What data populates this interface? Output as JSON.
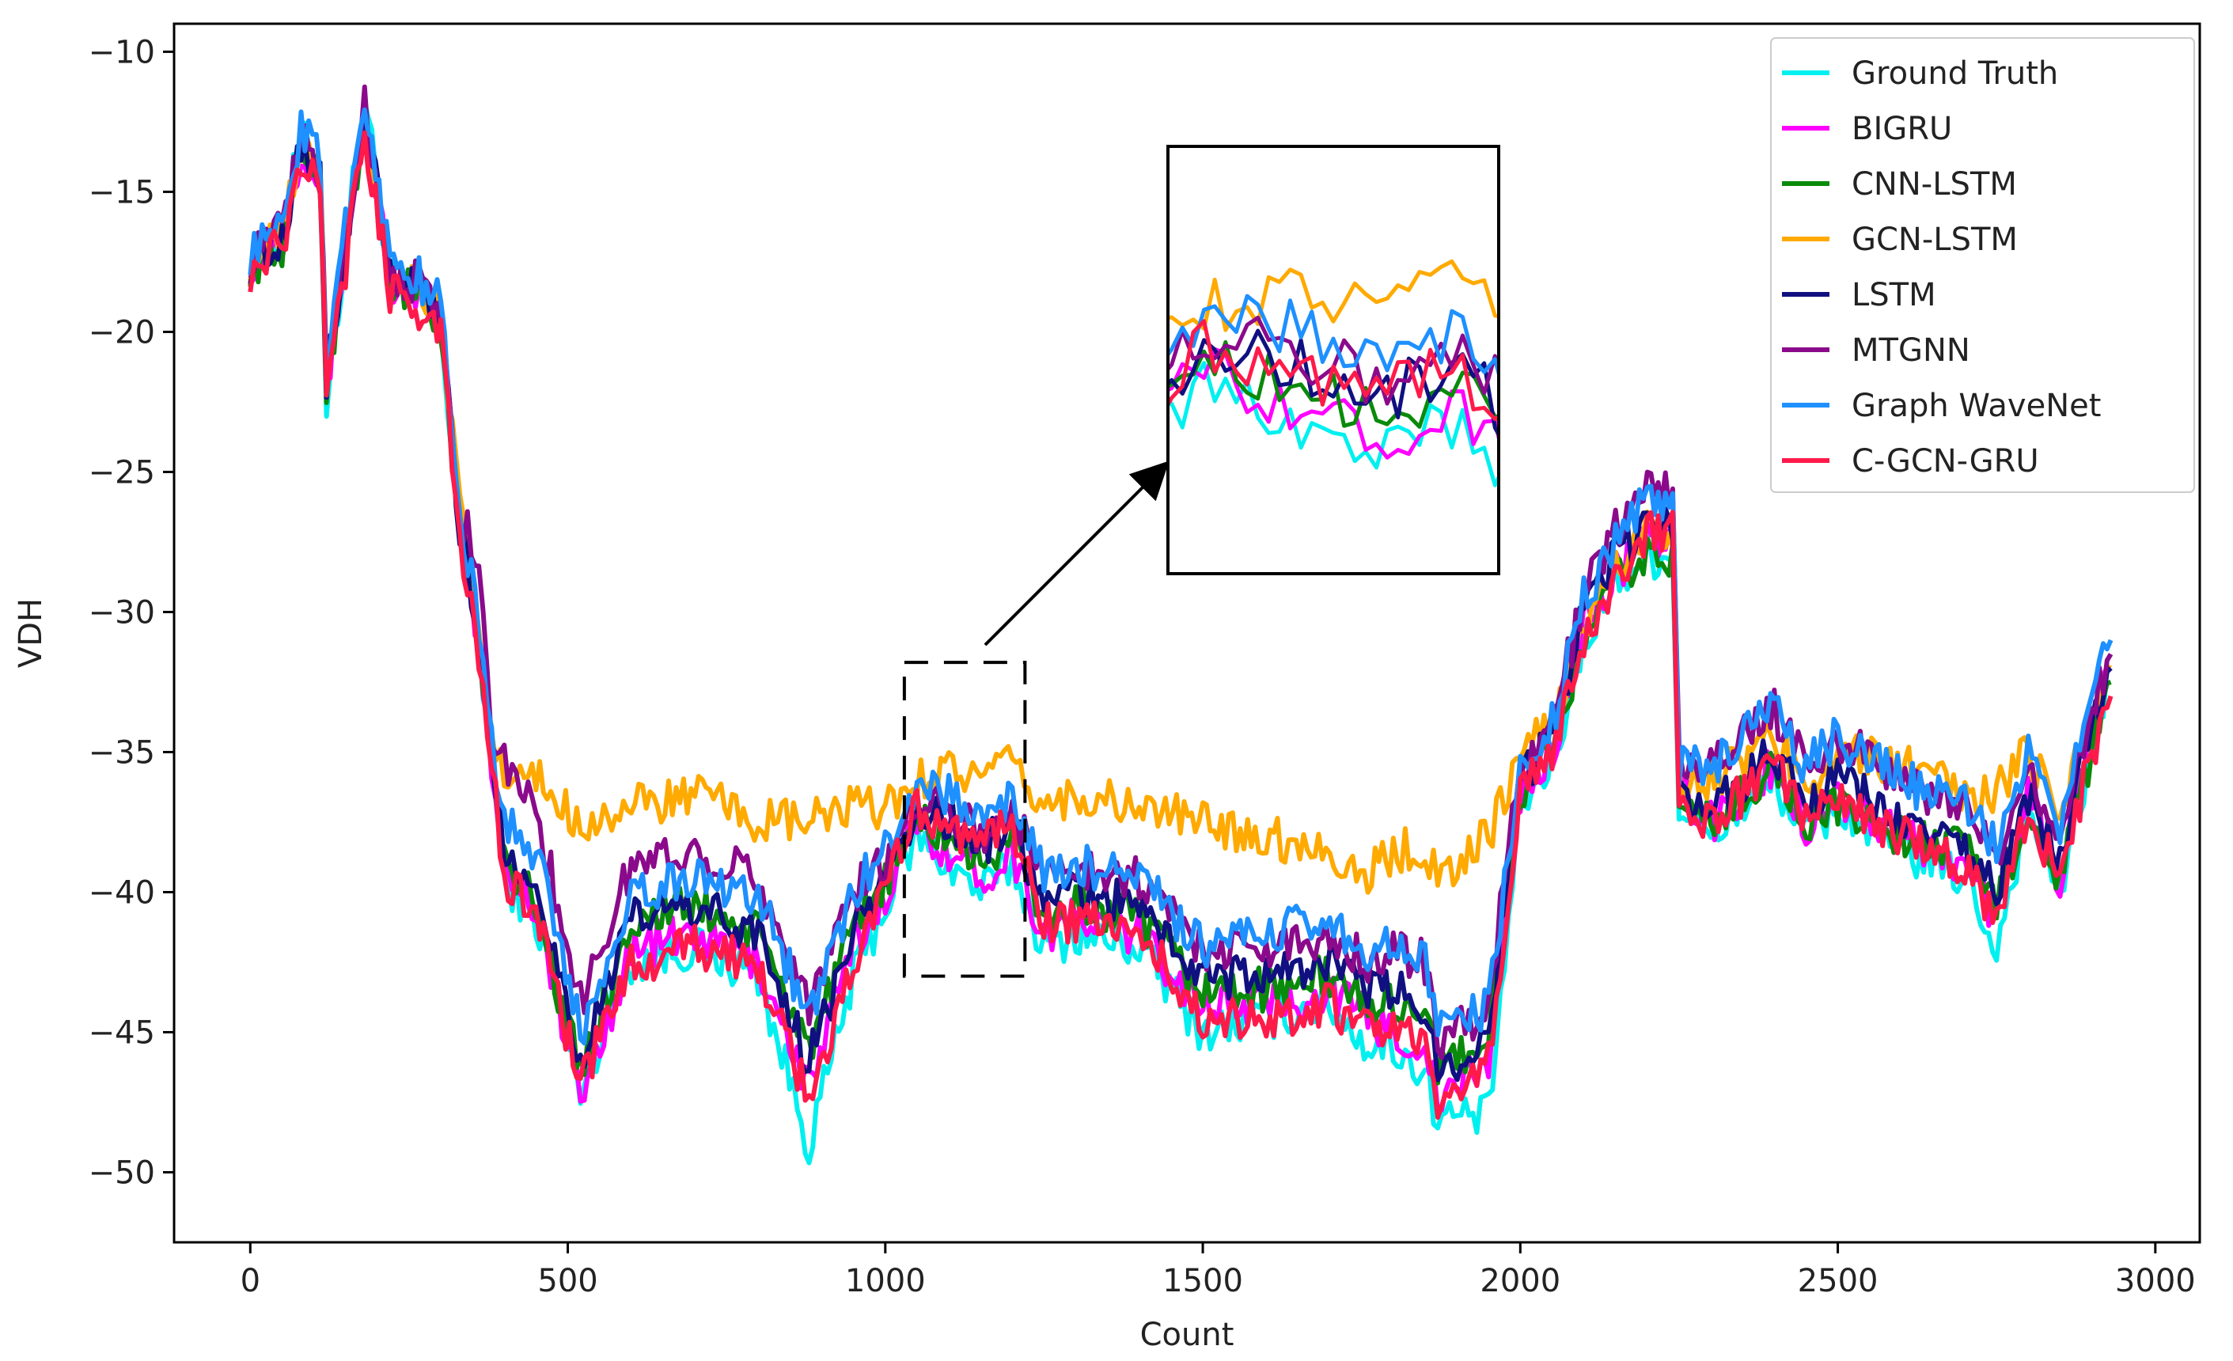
{
  "chart_data": {
    "type": "line",
    "xlabel": "Count",
    "ylabel": "VDH",
    "xlim": [
      -120,
      3070
    ],
    "ylim": [
      -52.5,
      -9
    ],
    "xticks": [
      0,
      500,
      1000,
      1500,
      2000,
      2500,
      3000
    ],
    "yticks": [
      -10,
      -15,
      -20,
      -25,
      -30,
      -35,
      -40,
      -45,
      -50
    ],
    "xtick_labels": [
      "0",
      "500",
      "1000",
      "1500",
      "2000",
      "2500",
      "3000"
    ],
    "ytick_labels": [
      "−10",
      "−15",
      "−20",
      "−25",
      "−30",
      "−35",
      "−40",
      "−45",
      "−50"
    ],
    "legend_position": "top-right",
    "x": [
      0,
      50,
      80,
      110,
      120,
      180,
      220,
      260,
      300,
      330,
      360,
      380,
      400,
      450,
      520,
      600,
      700,
      800,
      880,
      950,
      1000,
      1050,
      1100,
      1150,
      1200,
      1250,
      1300,
      1400,
      1500,
      1600,
      1700,
      1760,
      1800,
      1850,
      1870,
      1950,
      2000,
      2050,
      2100,
      2150,
      2200,
      2240,
      2250,
      2300,
      2400,
      2450,
      2500,
      2600,
      2700,
      2750,
      2800,
      2850,
      2900,
      2930
    ],
    "series": [
      {
        "name": "Ground Truth",
        "color": "#00f0f0",
        "values": [
          -17.5,
          -16.5,
          -13.0,
          -14.5,
          -22.5,
          -11.5,
          -18.0,
          -18.5,
          -20.0,
          -27.0,
          -31.0,
          -35.5,
          -39.5,
          -41.0,
          -47.0,
          -42.5,
          -42.0,
          -43.0,
          -49.0,
          -43.0,
          -40.5,
          -38.0,
          -39.0,
          -40.0,
          -39.0,
          -42.0,
          -41.5,
          -42.0,
          -45.0,
          -44.5,
          -44.0,
          -45.5,
          -45.5,
          -46.5,
          -48.0,
          -48.0,
          -37.0,
          -35.5,
          -31.0,
          -29.0,
          -28.0,
          -28.0,
          -37.0,
          -38.0,
          -36.0,
          -38.0,
          -37.0,
          -38.5,
          -39.5,
          -42.0,
          -37.0,
          -40.0,
          -35.0,
          -32.0
        ]
      },
      {
        "name": "BIGRU",
        "color": "#ff00ff",
        "values": [
          -17.5,
          -16.8,
          -13.3,
          -14.6,
          -22.0,
          -12.0,
          -18.2,
          -18.6,
          -19.8,
          -27.0,
          -31.0,
          -35.5,
          -39.0,
          -40.5,
          -47.5,
          -42.0,
          -41.5,
          -42.5,
          -47.0,
          -42.0,
          -40.0,
          -37.5,
          -38.5,
          -39.5,
          -38.5,
          -41.5,
          -41.0,
          -41.5,
          -44.0,
          -44.0,
          -43.5,
          -44.5,
          -45.0,
          -45.5,
          -47.5,
          -46.0,
          -36.5,
          -35.0,
          -30.5,
          -28.5,
          -27.5,
          -27.5,
          -36.5,
          -37.5,
          -35.5,
          -37.5,
          -36.5,
          -38.0,
          -39.0,
          -41.0,
          -36.5,
          -39.5,
          -34.5,
          -32.0
        ]
      },
      {
        "name": "CNN-LSTM",
        "color": "#0a8a0a",
        "values": [
          -17.6,
          -16.9,
          -13.4,
          -14.8,
          -22.0,
          -12.2,
          -18.3,
          -18.6,
          -19.8,
          -27.2,
          -31.2,
          -35.2,
          -38.5,
          -40.5,
          -46.5,
          -41.0,
          -40.5,
          -41.5,
          -45.5,
          -41.5,
          -39.5,
          -37.5,
          -38.0,
          -39.0,
          -38.0,
          -41.0,
          -40.5,
          -41.0,
          -43.5,
          -43.5,
          -43.0,
          -44.0,
          -44.0,
          -44.0,
          -46.5,
          -45.0,
          -36.5,
          -35.0,
          -31.0,
          -29.0,
          -28.0,
          -28.0,
          -37.0,
          -37.5,
          -35.5,
          -37.5,
          -37.0,
          -38.0,
          -38.5,
          -40.5,
          -37.0,
          -39.5,
          -35.0,
          -32.5
        ]
      },
      {
        "name": "GCN-LSTM",
        "color": "#ffaa00",
        "values": [
          -17.4,
          -16.5,
          -13.2,
          -14.5,
          -21.5,
          -12.0,
          -18.0,
          -18.3,
          -19.5,
          -26.5,
          -30.5,
          -34.5,
          -36.0,
          -36.0,
          -37.5,
          -37.0,
          -36.5,
          -37.5,
          -37.5,
          -37.0,
          -37.0,
          -36.0,
          -35.5,
          -36.0,
          -35.5,
          -37.0,
          -36.5,
          -37.0,
          -37.5,
          -38.0,
          -38.5,
          -39.5,
          -38.5,
          -38.5,
          -39.5,
          -38.0,
          -35.0,
          -34.0,
          -30.5,
          -28.5,
          -27.0,
          -27.0,
          -36.0,
          -36.0,
          -34.5,
          -36.0,
          -35.0,
          -35.5,
          -36.5,
          -36.5,
          -35.0,
          -37.0,
          -33.5,
          -32.0
        ]
      },
      {
        "name": "LSTM",
        "color": "#101080",
        "values": [
          -17.5,
          -16.7,
          -13.2,
          -14.6,
          -21.8,
          -12.1,
          -18.1,
          -18.5,
          -19.7,
          -27.0,
          -31.0,
          -35.0,
          -38.5,
          -39.5,
          -46.0,
          -41.0,
          -40.5,
          -41.5,
          -46.0,
          -41.5,
          -39.5,
          -37.0,
          -37.5,
          -38.5,
          -37.5,
          -40.5,
          -40.0,
          -40.5,
          -43.0,
          -43.0,
          -42.5,
          -43.5,
          -43.5,
          -44.0,
          -46.5,
          -45.0,
          -36.0,
          -34.5,
          -30.0,
          -28.0,
          -27.0,
          -27.0,
          -36.5,
          -37.0,
          -35.0,
          -37.0,
          -36.0,
          -37.5,
          -38.5,
          -40.0,
          -36.5,
          -39.0,
          -34.0,
          -32.0
        ]
      },
      {
        "name": "MTGNN",
        "color": "#8b0a8b",
        "values": [
          -17.3,
          -16.4,
          -13.0,
          -14.4,
          -21.5,
          -11.8,
          -17.8,
          -18.2,
          -19.3,
          -26.5,
          -28.0,
          -34.0,
          -35.5,
          -37.0,
          -44.0,
          -39.0,
          -38.5,
          -39.5,
          -44.0,
          -40.0,
          -39.0,
          -36.5,
          -37.0,
          -38.0,
          -37.0,
          -39.5,
          -39.0,
          -39.5,
          -42.0,
          -42.0,
          -41.5,
          -42.5,
          -42.0,
          -42.5,
          -45.5,
          -44.0,
          -35.5,
          -34.0,
          -29.5,
          -27.0,
          -25.5,
          -25.5,
          -35.5,
          -35.5,
          -33.5,
          -35.5,
          -34.5,
          -36.0,
          -37.0,
          -39.0,
          -35.5,
          -38.0,
          -33.5,
          -31.5
        ]
      },
      {
        "name": "Graph WaveNet",
        "color": "#1e90ff",
        "values": [
          -17.2,
          -16.2,
          -12.6,
          -14.0,
          -21.0,
          -11.5,
          -17.5,
          -18.0,
          -19.0,
          -26.5,
          -30.5,
          -34.5,
          -37.5,
          -38.5,
          -45.0,
          -40.0,
          -39.5,
          -40.0,
          -44.5,
          -40.0,
          -38.5,
          -36.0,
          -36.5,
          -37.5,
          -36.5,
          -39.5,
          -39.0,
          -39.5,
          -42.0,
          -41.5,
          -41.0,
          -42.0,
          -42.0,
          -42.5,
          -45.0,
          -44.0,
          -35.5,
          -34.0,
          -29.5,
          -27.5,
          -26.0,
          -26.0,
          -35.5,
          -35.5,
          -33.5,
          -35.5,
          -34.5,
          -36.0,
          -37.0,
          -38.5,
          -35.0,
          -37.5,
          -33.0,
          -31.0
        ]
      },
      {
        "name": "C-GCN-GRU",
        "color": "#ff1a4a",
        "values": [
          -17.8,
          -17.0,
          -13.8,
          -15.0,
          -22.5,
          -12.8,
          -18.5,
          -19.0,
          -20.2,
          -27.5,
          -31.5,
          -35.5,
          -39.5,
          -40.5,
          -47.0,
          -42.5,
          -42.0,
          -42.5,
          -47.5,
          -42.5,
          -40.0,
          -37.0,
          -37.5,
          -38.5,
          -37.5,
          -41.0,
          -41.0,
          -41.5,
          -44.5,
          -44.5,
          -44.0,
          -45.0,
          -45.0,
          -45.5,
          -48.0,
          -46.0,
          -36.5,
          -35.0,
          -31.0,
          -29.0,
          -27.0,
          -27.0,
          -36.5,
          -37.5,
          -35.5,
          -37.5,
          -36.5,
          -38.0,
          -39.0,
          -41.0,
          -37.0,
          -39.5,
          -35.0,
          -33.0
        ]
      }
    ]
  },
  "annotations": {
    "zoom_region_x": [
      1030,
      1220
    ],
    "zoom_region_y": [
      -43.0,
      -31.8
    ]
  }
}
